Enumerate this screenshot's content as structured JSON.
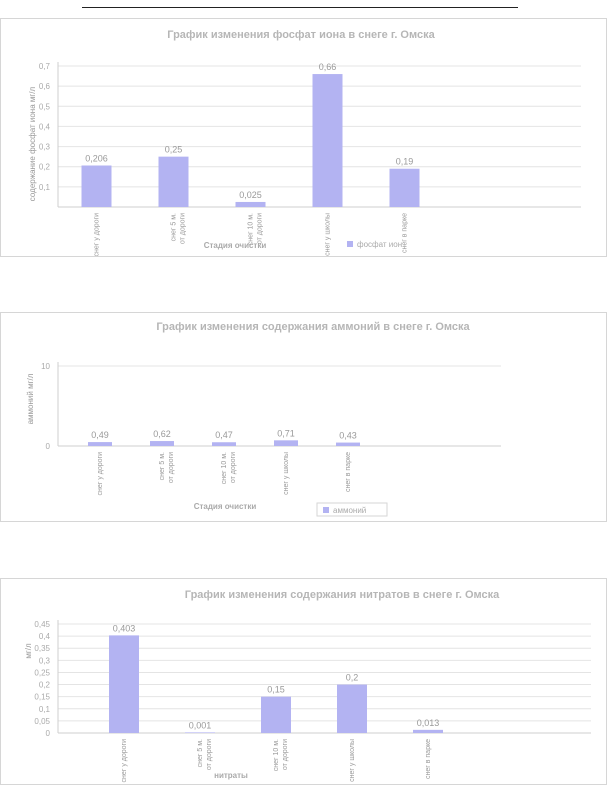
{
  "chart_data": [
    {
      "type": "bar",
      "title": "График изменения фосфат иона в снеге г. Омска",
      "ylabel": "содержание фосфат иона мг/л",
      "xlabel": "Стадия очистки",
      "categories": [
        "снег у дороги",
        "снег 5 м. от дороги",
        "снег 10 м. от дороги",
        "снег у школы",
        "снег в парке"
      ],
      "series": [
        {
          "name": "фосфат ион",
          "values": [
            0.206,
            0.25,
            0.025,
            0.66,
            0.19
          ]
        }
      ],
      "value_labels": [
        "0,206",
        "0,25",
        "0,025",
        "0,66",
        "0,19"
      ],
      "yticks": [
        "0,7",
        "0,6",
        "0,5",
        "0,4",
        "0,3",
        "0,2",
        "0,1"
      ],
      "ytick_values": [
        0.7,
        0.6,
        0.5,
        0.4,
        0.3,
        0.2,
        0.1
      ],
      "ylim": [
        0,
        0.7
      ],
      "grid": true,
      "legend": "bottom-right",
      "color": "#b3b3f2"
    },
    {
      "type": "bar",
      "title": "График изменения содержания аммоний в снеге г. Омска",
      "ylabel": "аммоний мг/л",
      "xlabel": "Стадия очистки",
      "categories": [
        "снег у дороги",
        "снег 5 м. от дороги",
        "снег 10 м. от дороги",
        "снег у школы",
        "снег в парке"
      ],
      "series": [
        {
          "name": "аммоний",
          "values": [
            0.49,
            0.62,
            0.47,
            0.71,
            0.43
          ]
        }
      ],
      "value_labels": [
        "0,49",
        "0,62",
        "0,47",
        "0,71",
        "0,43"
      ],
      "yticks": [
        "10",
        "0"
      ],
      "ytick_values": [
        10,
        0
      ],
      "ylim": [
        0,
        10
      ],
      "grid": true,
      "legend": "bottom",
      "color": "#b3b3f2"
    },
    {
      "type": "bar",
      "title": "График  изменения  содержания нитратов в снеге г. Омска",
      "ylabel": "мг/л",
      "xlabel": "нитраты",
      "categories": [
        "снег у дороги",
        "снег 5 м. от дороги",
        "снег 10 м. от дороги",
        "снег у школы",
        "снег в парке"
      ],
      "series": [
        {
          "name": "",
          "values": [
            0.403,
            0.001,
            0.15,
            0.2,
            0.013
          ]
        }
      ],
      "value_labels": [
        "0,403",
        "0,001",
        "0,15",
        "0,2",
        "0,013"
      ],
      "yticks": [
        "0,45",
        "0,4",
        "0,35",
        "0,3",
        "0,25",
        "0,2",
        "0,15",
        "0,1",
        "0,05",
        "0"
      ],
      "ytick_values": [
        0.45,
        0.4,
        0.35,
        0.3,
        0.25,
        0.2,
        0.15,
        0.1,
        0.05,
        0
      ],
      "ylim": [
        0,
        0.45
      ],
      "grid": true,
      "legend": "none",
      "color": "#b3b3f2"
    }
  ]
}
